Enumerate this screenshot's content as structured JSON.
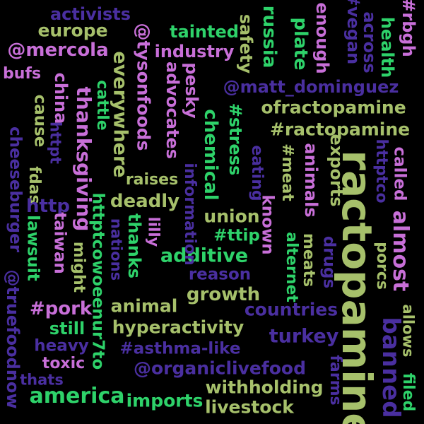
{
  "palette": {
    "green": "#2ED26A",
    "olive": "#A6C06B",
    "purple": "#C86FD8",
    "indigo": "#4A2FA0"
  },
  "words": [
    {
      "text": "ractopamine",
      "color": "olive"
    },
    {
      "text": "banned",
      "color": "indigo"
    },
    {
      "text": "almost",
      "color": "purple"
    },
    {
      "text": "thanksgiving",
      "color": "purple"
    },
    {
      "text": "ofractopamine",
      "color": "olive"
    },
    {
      "text": "#ractopamine",
      "color": "olive"
    },
    {
      "text": "@matt_dominguez",
      "color": "indigo"
    },
    {
      "text": "@mercola",
      "color": "purple"
    },
    {
      "text": "everywhere",
      "color": "olive"
    },
    {
      "text": "@tysonfoods",
      "color": "purple"
    },
    {
      "text": "china",
      "color": "purple"
    },
    {
      "text": "additive",
      "color": "green"
    },
    {
      "text": "#pork",
      "color": "purple"
    },
    {
      "text": "countries",
      "color": "indigo"
    },
    {
      "text": "turkey",
      "color": "indigo"
    },
    {
      "text": "america",
      "color": "green"
    },
    {
      "text": "@organiclivefood",
      "color": "indigo"
    },
    {
      "text": "hyperactivity",
      "color": "olive"
    },
    {
      "text": "#asthma-like",
      "color": "indigo"
    },
    {
      "text": "growth",
      "color": "olive"
    },
    {
      "text": "animal",
      "color": "olive"
    },
    {
      "text": "withholding",
      "color": "olive"
    },
    {
      "text": "livestock",
      "color": "olive"
    },
    {
      "text": "imports",
      "color": "green"
    },
    {
      "text": "industry",
      "color": "purple"
    },
    {
      "text": "tainted",
      "color": "green"
    },
    {
      "text": "europe",
      "color": "olive"
    },
    {
      "text": "activists",
      "color": "indigo"
    },
    {
      "text": "russia",
      "color": "green"
    },
    {
      "text": "plate",
      "color": "green"
    },
    {
      "text": "enough",
      "color": "purple"
    },
    {
      "text": "#vegan",
      "color": "indigo"
    },
    {
      "text": "across",
      "color": "indigo"
    },
    {
      "text": "health",
      "color": "green"
    },
    {
      "text": "#rbgh",
      "color": "purple"
    },
    {
      "text": "safety",
      "color": "olive"
    },
    {
      "text": "advocates",
      "color": "purple"
    },
    {
      "text": "pesky",
      "color": "purple"
    },
    {
      "text": "chemical",
      "color": "green"
    },
    {
      "text": "#stress",
      "color": "green"
    },
    {
      "text": "eating",
      "color": "indigo"
    },
    {
      "text": "#meat",
      "color": "olive"
    },
    {
      "text": "animals",
      "color": "purple"
    },
    {
      "text": "exports",
      "color": "olive"
    },
    {
      "text": "httptco",
      "color": "indigo"
    },
    {
      "text": "called",
      "color": "purple"
    },
    {
      "text": "cheeseburger",
      "color": "indigo"
    },
    {
      "text": "fdas",
      "color": "olive"
    },
    {
      "text": "cause",
      "color": "olive"
    },
    {
      "text": "httpt",
      "color": "indigo"
    },
    {
      "text": "cattle",
      "color": "green"
    },
    {
      "text": "bufs",
      "color": "purple"
    },
    {
      "text": "raises",
      "color": "olive"
    },
    {
      "text": "deadly",
      "color": "olive"
    },
    {
      "text": "http",
      "color": "indigo"
    },
    {
      "text": "thanks",
      "color": "green"
    },
    {
      "text": "httptcowoeenur7to",
      "color": "green"
    },
    {
      "text": "nations",
      "color": "indigo"
    },
    {
      "text": "lilly",
      "color": "purple"
    },
    {
      "text": "information",
      "color": "indigo"
    },
    {
      "text": "union",
      "color": "olive"
    },
    {
      "text": "#ttip",
      "color": "green"
    },
    {
      "text": "known",
      "color": "purple"
    },
    {
      "text": "reason",
      "color": "indigo"
    },
    {
      "text": "lawsuit",
      "color": "green"
    },
    {
      "text": "taiwan",
      "color": "purple"
    },
    {
      "text": "might",
      "color": "olive"
    },
    {
      "text": "still",
      "color": "green"
    },
    {
      "text": "heavy",
      "color": "indigo"
    },
    {
      "text": "toxic",
      "color": "purple"
    },
    {
      "text": "thats",
      "color": "indigo"
    },
    {
      "text": "@truefoodnow",
      "color": "indigo"
    },
    {
      "text": "alternet",
      "color": "green"
    },
    {
      "text": "meats",
      "color": "olive"
    },
    {
      "text": "drugs",
      "color": "indigo"
    },
    {
      "text": "porcs",
      "color": "olive"
    },
    {
      "text": "farms",
      "color": "indigo"
    },
    {
      "text": "allows",
      "color": "olive"
    },
    {
      "text": "filed",
      "color": "green"
    }
  ]
}
